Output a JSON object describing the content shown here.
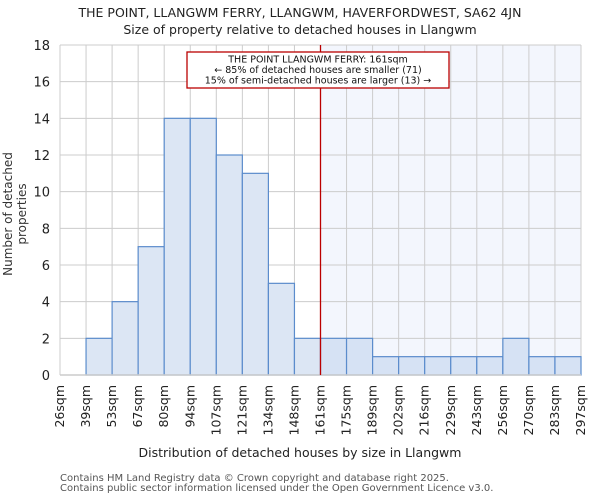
{
  "header": {
    "title": "THE POINT, LLANGWM FERRY, LLANGWM, HAVERFORDWEST, SA62 4JN",
    "subtitle": "Size of property relative to detached houses in Llangwm"
  },
  "annotation": {
    "line1": "THE POINT LLANGWM FERRY: 161sqm",
    "line2": "← 85% of detached houses are smaller (71)",
    "line3": "15% of semi-detached houses are larger (13) →"
  },
  "footer": {
    "line1": "Contains HM Land Registry data © Crown copyright and database right 2025.",
    "line2": "Contains public sector information licensed under the Open Government Licence v3.0."
  },
  "colors": {
    "bar_fill": "#dce6f4",
    "bar_fill_right": "#d6e2f4",
    "bar_edge": "#5b8ccc",
    "marker": "#bb0000",
    "highlight_bg": "#f3f6fd",
    "grid": "#cccccc"
  },
  "chart_data": {
    "type": "bar",
    "title": "THE POINT, LLANGWM FERRY, LLANGWM, HAVERFORDWEST, SA62 4JN — Size of property relative to detached houses in Llangwm",
    "xlabel": "Distribution of detached houses by size in Llangwm",
    "ylabel": "Number of detached properties",
    "categories": [
      "26sqm",
      "39sqm",
      "53sqm",
      "67sqm",
      "80sqm",
      "94sqm",
      "107sqm",
      "121sqm",
      "134sqm",
      "148sqm",
      "161sqm",
      "175sqm",
      "189sqm",
      "202sqm",
      "216sqm",
      "229sqm",
      "243sqm",
      "256sqm",
      "270sqm",
      "283sqm",
      "297sqm"
    ],
    "bin_edges": [
      "26sqm",
      "39sqm",
      "53sqm",
      "67sqm",
      "80sqm",
      "94sqm",
      "107sqm",
      "121sqm",
      "134sqm",
      "148sqm",
      "161sqm",
      "175sqm",
      "189sqm",
      "202sqm",
      "216sqm",
      "229sqm",
      "243sqm",
      "256sqm",
      "270sqm",
      "283sqm",
      "297sqm"
    ],
    "values": [
      0,
      2,
      4,
      7,
      14,
      14,
      12,
      11,
      5,
      2,
      2,
      2,
      1,
      1,
      1,
      1,
      1,
      2,
      1,
      1
    ],
    "ylim": [
      0,
      18
    ],
    "yticks": [
      0,
      2,
      4,
      6,
      8,
      10,
      12,
      14,
      16,
      18
    ],
    "grid": true,
    "marker": {
      "value": "161sqm",
      "bin_index": 10,
      "label": "THE POINT LLANGWM FERRY: 161sqm"
    }
  }
}
